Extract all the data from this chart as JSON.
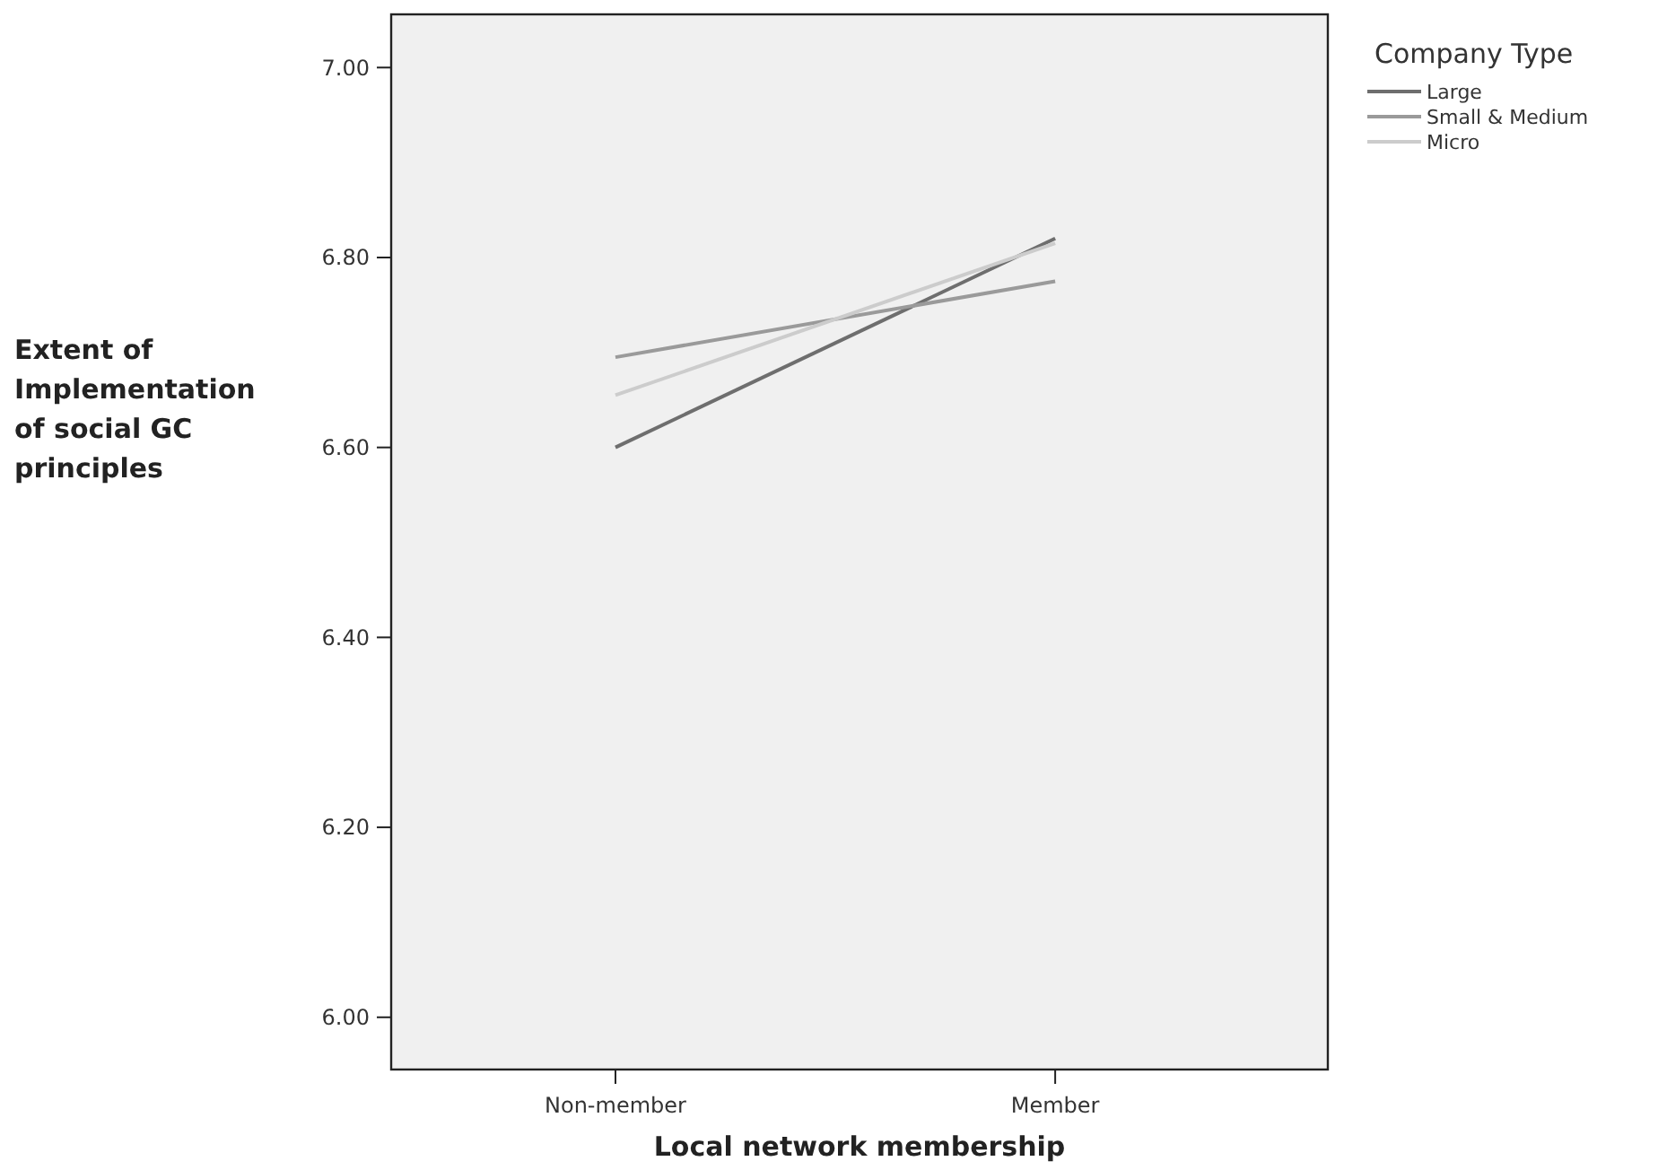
{
  "chart_data": {
    "type": "line",
    "xlabel": "Local network membership",
    "ylabel": "Extent of Implementation of social GC principles",
    "legend_title": "Company Type",
    "categories": [
      "Non-member",
      "Member"
    ],
    "series": [
      {
        "name": "Large",
        "color": "#6e6e6e",
        "values": [
          6.6,
          6.82
        ]
      },
      {
        "name": "Small & Medium",
        "color": "#9a9a9a",
        "values": [
          6.695,
          6.775
        ]
      },
      {
        "name": "Micro",
        "color": "#cccccc",
        "values": [
          6.655,
          6.815
        ]
      }
    ],
    "ylim": [
      5.945,
      7.056
    ],
    "yticks": [
      {
        "value": 6,
        "label": "6.00"
      },
      {
        "value": 6.2,
        "label": "6.20"
      },
      {
        "value": 6.4,
        "label": "6.40"
      },
      {
        "value": 6.6,
        "label": "6.60"
      },
      {
        "value": 6.8,
        "label": "6.80"
      },
      {
        "value": 7,
        "label": "7.00"
      }
    ],
    "grid": false,
    "legend": "top right",
    "marker": "none",
    "line_style": "solid"
  }
}
